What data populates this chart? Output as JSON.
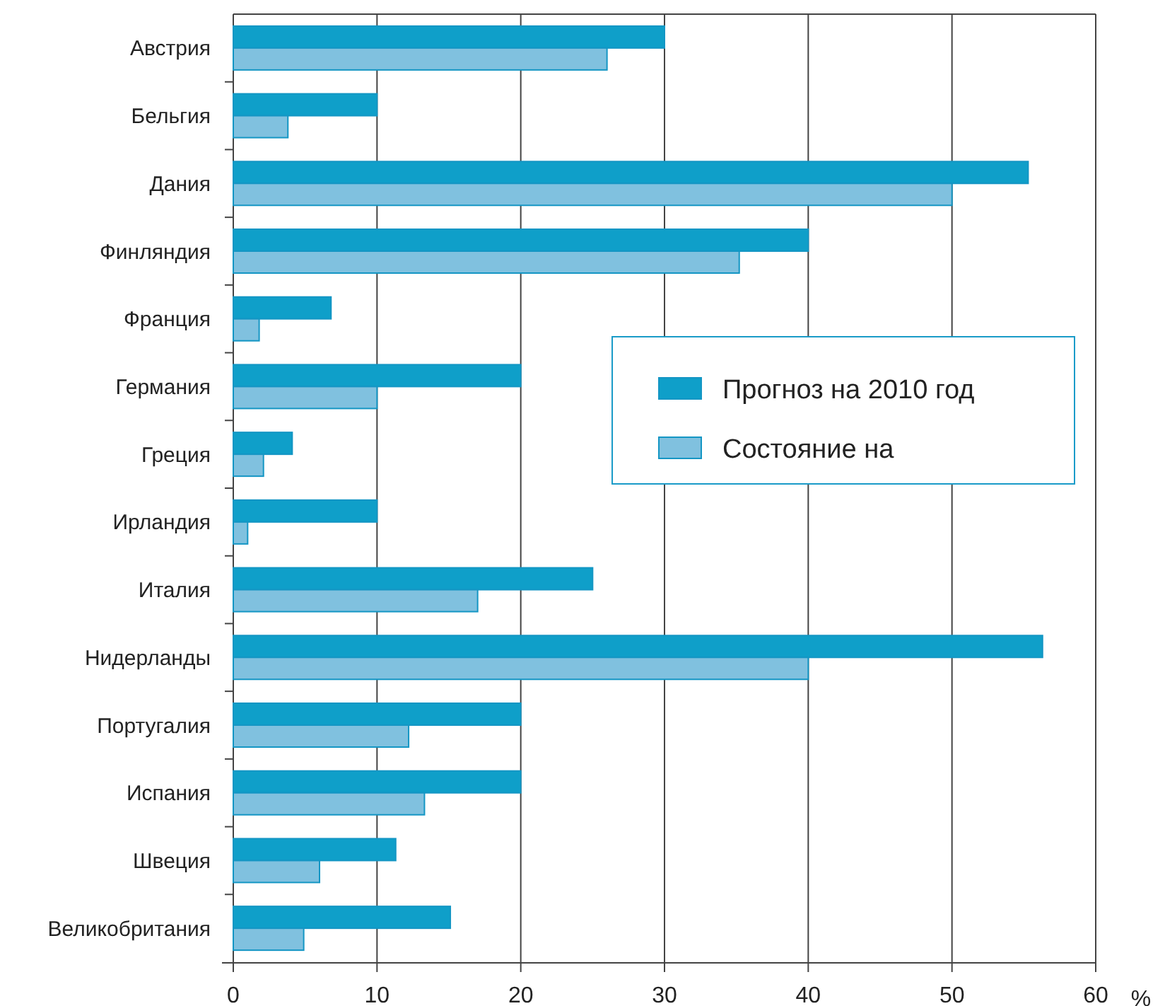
{
  "chart_data": {
    "type": "bar",
    "orientation": "horizontal",
    "xlabel": "%",
    "categories": [
      "Австрия",
      "Бельгия",
      "Дания",
      "Финляндия",
      "Франция",
      "Германия",
      "Греция",
      "Ирландия",
      "Италия",
      "Нидерланды",
      "Португалия",
      "Испания",
      "Швеция",
      "Великобритания"
    ],
    "series": [
      {
        "name": "Прогноз на 2010 год",
        "color": "#0f9fc9",
        "values": [
          30,
          10,
          55.3,
          40,
          6.8,
          20,
          4.1,
          10,
          25,
          56.3,
          20,
          20,
          11.3,
          15.1
        ]
      },
      {
        "name": "Состояние на",
        "color": "#80c1df",
        "values": [
          26,
          3.8,
          50,
          35.2,
          1.8,
          10,
          2.1,
          1,
          17,
          40,
          12.2,
          13.3,
          6,
          4.9
        ]
      }
    ],
    "xlim": [
      0,
      60
    ],
    "xticks": [
      0,
      10,
      20,
      30,
      40,
      50,
      60
    ],
    "grid": "x",
    "legend": "right"
  }
}
